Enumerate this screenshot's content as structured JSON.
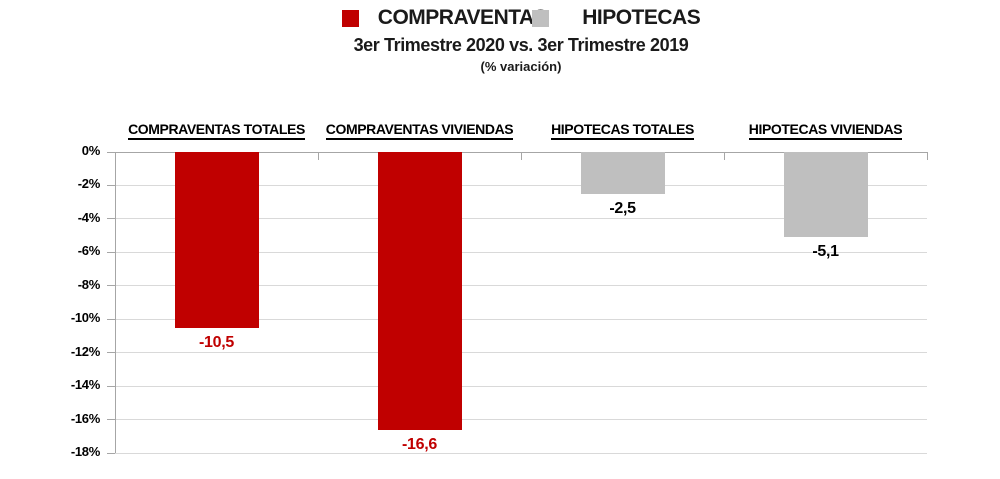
{
  "header": {
    "title": "3er Trimestre 2020 vs. 3er Trimestre 2019",
    "subtitle": "(% variación)"
  },
  "legend": {
    "items": [
      {
        "label": "COMPRAVENTAS",
        "color": "#C00000"
      },
      {
        "label": "HIPOTECAS",
        "color": "#BFBFBF"
      }
    ]
  },
  "chart_data": {
    "type": "bar",
    "categories": [
      "COMPRAVENTAS TOTALES",
      "COMPRAVENTAS VIVIENDAS",
      "HIPOTECAS TOTALES",
      "HIPOTECAS VIVIENDAS"
    ],
    "values": [
      -10.5,
      -16.6,
      -2.5,
      -5.1
    ],
    "value_labels": [
      "-10,5",
      "-16,6",
      "-2,5",
      "-5,1"
    ],
    "bar_colors": [
      "#C00000",
      "#C00000",
      "#BFBFBF",
      "#BFBFBF"
    ],
    "value_label_colors": [
      "#C00000",
      "#C00000",
      "#000000",
      "#000000"
    ],
    "title": "3er Trimestre 2020 vs. 3er Trimestre 2019",
    "xlabel": "",
    "ylabel": "",
    "ylim": [
      -18,
      0
    ],
    "ytick_step": 2,
    "ytick_labels": [
      "0%",
      "-2%",
      "-4%",
      "-6%",
      "-8%",
      "-10%",
      "-12%",
      "-14%",
      "-16%",
      "-18%"
    ],
    "grid": true,
    "legend_position": "top",
    "colors": {
      "grid": "#D9D9D9",
      "axis": "#A6A6A6",
      "text": "#000000"
    }
  }
}
